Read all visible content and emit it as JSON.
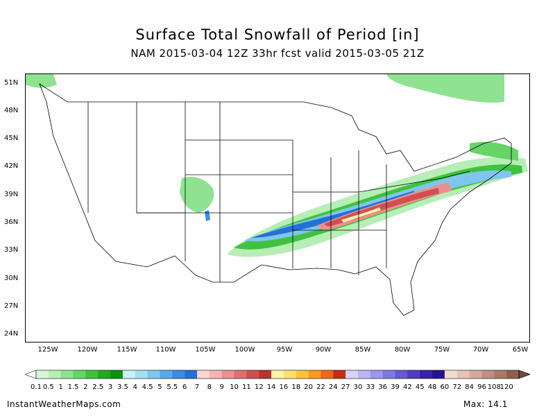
{
  "header": {
    "title": "Surface Total Snowfall of Period [in]",
    "subtitle": "NAM 2015-03-04 12Z 33hr fcst valid 2015-03-05 21Z"
  },
  "axes": {
    "lat_labels": [
      "51N",
      "48N",
      "45N",
      "42N",
      "39N",
      "36N",
      "33N",
      "30N",
      "27N",
      "24N"
    ],
    "lon_labels": [
      "125W",
      "120W",
      "115W",
      "110W",
      "105W",
      "100W",
      "95W",
      "90W",
      "85W",
      "80W",
      "75W",
      "70W",
      "65W"
    ]
  },
  "colorbar": {
    "labels": [
      "0.1",
      "0.5",
      "1",
      "1.5",
      "2",
      "2.5",
      "3",
      "3.5",
      "4",
      "4.5",
      "5",
      "5.5",
      "6",
      "7",
      "8",
      "9",
      "10",
      "11",
      "12",
      "14",
      "16",
      "18",
      "20",
      "22",
      "24",
      "27",
      "30",
      "33",
      "36",
      "39",
      "42",
      "45",
      "48",
      "60",
      "72",
      "84",
      "96",
      "108",
      "120"
    ],
    "colors": [
      "#d6f7d6",
      "#b6eeb6",
      "#8fe28f",
      "#66d466",
      "#3fc23f",
      "#22a822",
      "#0f8f0f",
      "#c8f0f8",
      "#a6def2",
      "#7fc6ee",
      "#5aa8ea",
      "#3c8ce4",
      "#2470d8",
      "#fcd4d4",
      "#f7b4b4",
      "#eb9090",
      "#df7070",
      "#cf5050",
      "#b53434",
      "#fff2a8",
      "#ffe070",
      "#ffc23c",
      "#ff9a20",
      "#f06818",
      "#c03010",
      "#d6d4fa",
      "#bab6f4",
      "#9c96ec",
      "#7f78e2",
      "#6458d4",
      "#4c3cc2",
      "#3822ac",
      "#261290",
      "#f2dcd2",
      "#e4c4b8",
      "#d2aa9c",
      "#be9082",
      "#a8786a",
      "#8e5e50"
    ]
  },
  "footer": {
    "credit": "InstantWeatherMaps.com",
    "max": "Max:  14.1"
  }
}
